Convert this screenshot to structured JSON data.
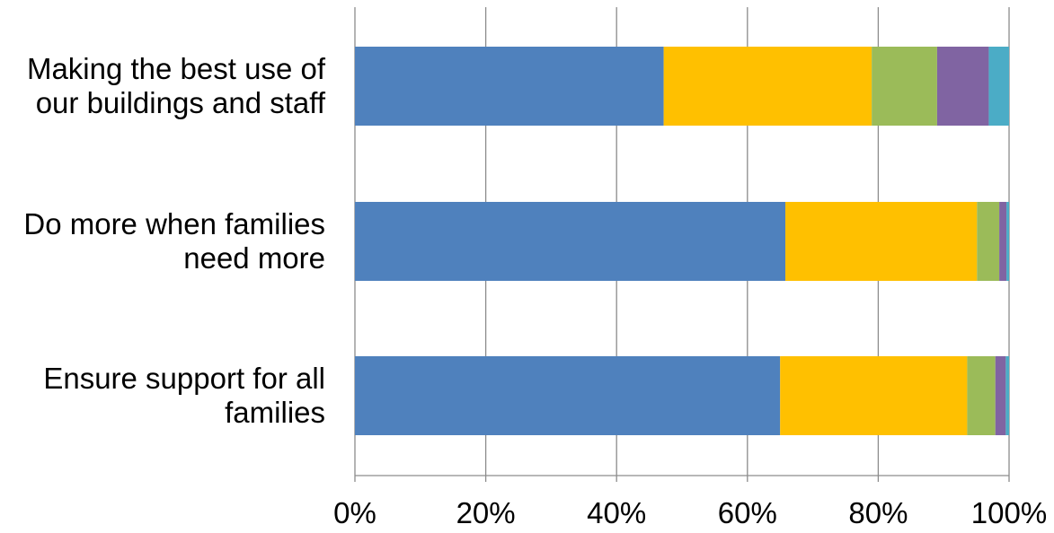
{
  "chart_data": {
    "type": "bar",
    "orientation": "horizontal",
    "stacked": true,
    "categories": [
      [
        "Making the best use of",
        "our buildings and staff"
      ],
      [
        "Do more when families",
        "need more"
      ],
      [
        "Ensure support for all",
        "families"
      ]
    ],
    "series": [
      {
        "color": "#4F81BD",
        "values": [
          47.2,
          65.8,
          65.0
        ]
      },
      {
        "color": "#FFC000",
        "values": [
          31.8,
          29.3,
          28.6
        ]
      },
      {
        "color": "#9BBB59",
        "values": [
          10.0,
          3.4,
          4.3
        ]
      },
      {
        "color": "#8064A2",
        "values": [
          7.9,
          1.1,
          1.6
        ]
      },
      {
        "color": "#4BACC6",
        "values": [
          3.1,
          0.4,
          0.5
        ]
      }
    ],
    "xlim": [
      0,
      100
    ],
    "x_ticks": [
      "0%",
      "20%",
      "40%",
      "60%",
      "80%",
      "100%"
    ],
    "grid": true,
    "legend": "none",
    "title": "",
    "xlabel": "",
    "ylabel": ""
  }
}
